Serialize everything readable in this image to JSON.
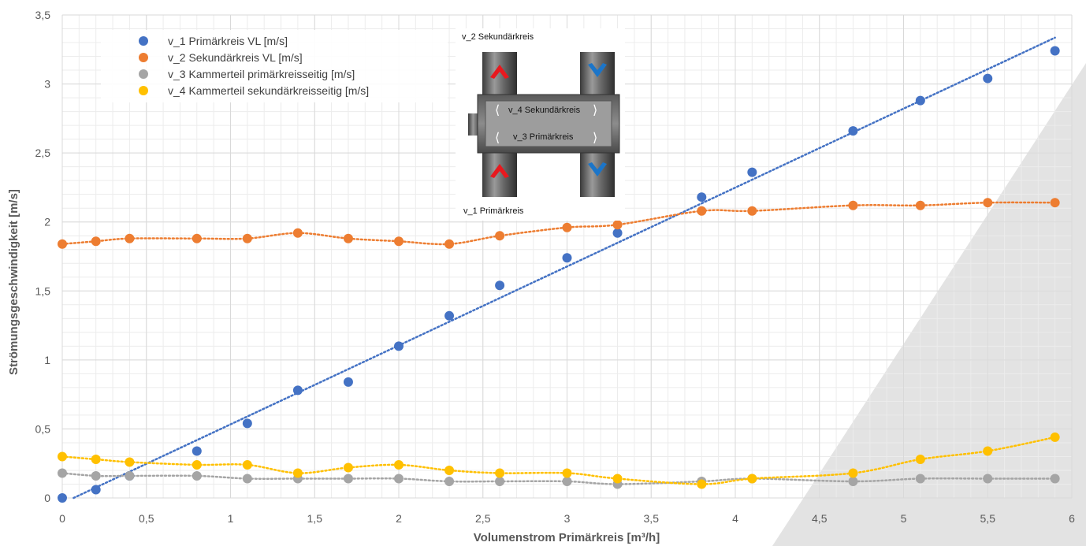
{
  "chart_data": {
    "type": "scatter",
    "xlabel": "Volumenstrom Primärkreis [m³/h]",
    "ylabel": "Strömungsgeschwindigkeit [m/s]",
    "xlim": [
      0,
      6
    ],
    "ylim": [
      0,
      3.5
    ],
    "x_major_step": 0.5,
    "y_major_step": 0.5,
    "x_minor_step": 0.1,
    "y_minor_step": 0.1,
    "grid": true,
    "legend_position": "top-left",
    "x_tick_labels": [
      "0",
      "0,5",
      "1",
      "1,5",
      "2",
      "2,5",
      "3",
      "3,5",
      "4",
      "4,5",
      "5",
      "5,5",
      "6"
    ],
    "y_tick_labels": [
      "0",
      "0,5",
      "1",
      "1,5",
      "2",
      "2,5",
      "3",
      "3,5"
    ],
    "series": [
      {
        "name": "v_1 Primärkreis VL [m/s]",
        "color": "#4472C4",
        "trendline": "linear",
        "x": [
          0,
          0.2,
          0.4,
          0.8,
          1.1,
          1.4,
          1.7,
          2.0,
          2.3,
          2.6,
          3.0,
          3.3,
          3.8,
          4.1,
          4.7,
          5.1,
          5.5,
          5.9
        ],
        "y": [
          0,
          0.06,
          0.16,
          0.34,
          0.54,
          0.78,
          0.84,
          1.1,
          1.32,
          1.54,
          1.74,
          1.92,
          2.18,
          2.36,
          2.66,
          2.88,
          3.04,
          3.24
        ]
      },
      {
        "name": "v_2 Sekundärkreis  VL [m/s]",
        "color": "#ED7D31",
        "trendline": "smooth",
        "x": [
          0,
          0.2,
          0.4,
          0.8,
          1.1,
          1.4,
          1.7,
          2.0,
          2.3,
          2.6,
          3.0,
          3.3,
          3.8,
          4.1,
          4.7,
          5.1,
          5.5,
          5.9
        ],
        "y": [
          1.84,
          1.86,
          1.88,
          1.88,
          1.88,
          1.92,
          1.88,
          1.86,
          1.84,
          1.9,
          1.96,
          1.98,
          2.08,
          2.08,
          2.12,
          2.12,
          2.14,
          2.14
        ]
      },
      {
        "name": "v_3 Kammerteil primärkreisseitig  [m/s]",
        "color": "#A5A5A5",
        "trendline": "smooth",
        "x": [
          0,
          0.2,
          0.4,
          0.8,
          1.1,
          1.4,
          1.7,
          2.0,
          2.3,
          2.6,
          3.0,
          3.3,
          3.8,
          4.1,
          4.7,
          5.1,
          5.5,
          5.9
        ],
        "y": [
          0.18,
          0.16,
          0.16,
          0.16,
          0.14,
          0.14,
          0.14,
          0.14,
          0.12,
          0.12,
          0.12,
          0.1,
          0.12,
          0.14,
          0.12,
          0.14,
          0.14,
          0.14
        ]
      },
      {
        "name": "v_4 Kammerteil sekundärkreisseitig [m/s]",
        "color": "#FFC000",
        "trendline": "smooth",
        "x": [
          0,
          0.2,
          0.4,
          0.8,
          1.1,
          1.4,
          1.7,
          2.0,
          2.3,
          2.6,
          3.0,
          3.3,
          3.8,
          4.1,
          4.7,
          5.1,
          5.5,
          5.9
        ],
        "y": [
          0.3,
          0.28,
          0.26,
          0.24,
          0.24,
          0.18,
          0.22,
          0.24,
          0.2,
          0.18,
          0.18,
          0.14,
          0.1,
          0.14,
          0.18,
          0.28,
          0.34,
          0.44
        ]
      }
    ]
  },
  "inset": {
    "label_top": "v_2 Sekundärkreis",
    "label_chamber_top": "v_4 Sekundärkreis",
    "label_chamber_bottom": "v_3 Primärkreis",
    "label_bottom": "v_1 Primärkreis",
    "arrow_hot_color": "#E8191E",
    "arrow_cold_color": "#1B75C9"
  }
}
